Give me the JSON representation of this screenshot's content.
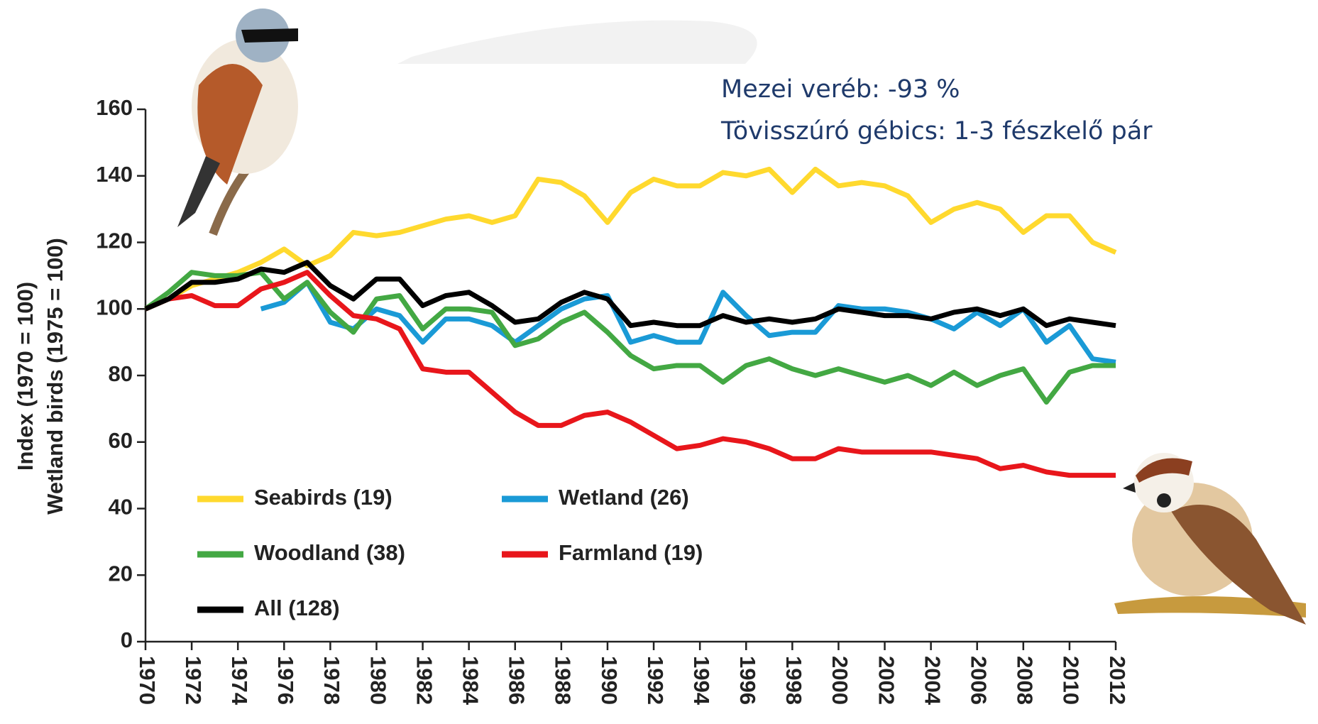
{
  "chart_data": {
    "type": "line",
    "ylabel": [
      "Index (1970 = 100)",
      "Wetland birds (1975 = 100)"
    ],
    "annotations": [
      "Mezei veréb: -93 %",
      "Tövisszúró gébics: 1-3 fészkelő pár"
    ],
    "x": [
      1970,
      1971,
      1972,
      1973,
      1974,
      1975,
      1976,
      1977,
      1978,
      1979,
      1980,
      1981,
      1982,
      1983,
      1984,
      1985,
      1986,
      1987,
      1988,
      1989,
      1990,
      1991,
      1992,
      1993,
      1994,
      1995,
      1996,
      1997,
      1998,
      1999,
      2000,
      2001,
      2002,
      2003,
      2004,
      2005,
      2006,
      2007,
      2008,
      2009,
      2010,
      2011,
      2012
    ],
    "xlim": [
      1970,
      2012
    ],
    "xticks": [
      1970,
      1972,
      1974,
      1976,
      1978,
      1980,
      1982,
      1984,
      1986,
      1988,
      1990,
      1992,
      1994,
      1996,
      1998,
      2000,
      2002,
      2004,
      2006,
      2008,
      2010,
      2012
    ],
    "ylim": [
      0,
      160
    ],
    "yticks": [
      0,
      20,
      40,
      60,
      80,
      100,
      120,
      140,
      160
    ],
    "series": [
      {
        "name": "Seabirds (19)",
        "color": "#ffd92e",
        "values": [
          100,
          103,
          107,
          109,
          111,
          114,
          118,
          113,
          116,
          123,
          122,
          123,
          125,
          127,
          128,
          126,
          128,
          139,
          138,
          134,
          126,
          135,
          139,
          137,
          137,
          141,
          140,
          142,
          135,
          142,
          137,
          138,
          137,
          134,
          126,
          130,
          132,
          130,
          123,
          128,
          128,
          120,
          117
        ]
      },
      {
        "name": "Wetland (26)",
        "color": "#1a9ad6",
        "values": [
          null,
          null,
          null,
          null,
          null,
          100,
          102,
          108,
          96,
          94,
          100,
          98,
          90,
          97,
          97,
          95,
          90,
          95,
          100,
          103,
          104,
          90,
          92,
          90,
          90,
          105,
          98,
          92,
          93,
          93,
          101,
          100,
          100,
          99,
          97,
          94,
          99,
          95,
          100,
          90,
          95,
          85,
          84
        ]
      },
      {
        "name": "Woodland (38)",
        "color": "#43a843",
        "values": [
          100,
          105,
          111,
          110,
          110,
          111,
          103,
          108,
          99,
          93,
          103,
          104,
          94,
          100,
          100,
          99,
          89,
          91,
          96,
          99,
          93,
          86,
          82,
          83,
          83,
          78,
          83,
          85,
          82,
          80,
          82,
          80,
          78,
          80,
          77,
          81,
          77,
          80,
          82,
          72,
          81,
          83,
          83
        ]
      },
      {
        "name": "Farmland (19)",
        "color": "#e8161b",
        "values": [
          100,
          103,
          104,
          101,
          101,
          106,
          108,
          111,
          104,
          98,
          97,
          94,
          82,
          81,
          81,
          75,
          69,
          65,
          65,
          68,
          69,
          66,
          62,
          58,
          59,
          61,
          60,
          58,
          55,
          55,
          58,
          57,
          57,
          57,
          57,
          56,
          55,
          52,
          53,
          51,
          50,
          50,
          50
        ]
      },
      {
        "name": "All (128)",
        "color": "#000000",
        "values": [
          100,
          103,
          108,
          108,
          109,
          112,
          111,
          114,
          107,
          103,
          109,
          109,
          101,
          104,
          105,
          101,
          96,
          97,
          102,
          105,
          103,
          95,
          96,
          95,
          95,
          98,
          96,
          97,
          96,
          97,
          100,
          99,
          98,
          98,
          97,
          99,
          100,
          98,
          100,
          95,
          97,
          96,
          95
        ]
      }
    ]
  }
}
